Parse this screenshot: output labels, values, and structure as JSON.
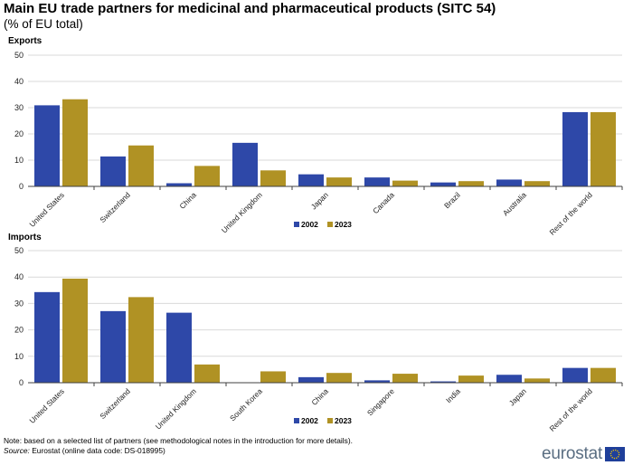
{
  "header": {
    "title": "Main EU trade partners for medicinal and pharmaceutical products (SITC 54)",
    "subtitle": "(% of EU total)"
  },
  "colors": {
    "series_2002": "#2e48a8",
    "series_2023": "#b09224",
    "grid": "#d9d9d9",
    "axis": "#404040"
  },
  "chart_data": [
    {
      "type": "bar",
      "title": "Exports",
      "categories": [
        "United States",
        "Switzerland",
        "China",
        "United Kingdom",
        "Japan",
        "Canada",
        "Brazil",
        "Australia",
        "Rest of the world"
      ],
      "series": [
        {
          "name": "2002",
          "values": [
            30.9,
            11.4,
            1.2,
            16.6,
            4.6,
            3.4,
            1.5,
            2.6,
            28.3
          ]
        },
        {
          "name": "2023",
          "values": [
            33.2,
            15.6,
            7.8,
            6.1,
            3.4,
            2.2,
            2.0,
            2.0,
            28.3
          ]
        }
      ],
      "ylim": [
        0,
        50
      ],
      "yticks": [
        "0",
        "10",
        "20",
        "30",
        "40",
        "50"
      ],
      "grid": true,
      "legend_position": "bottom-center"
    },
    {
      "type": "bar",
      "title": "Imports",
      "categories": [
        "United States",
        "Switzerland",
        "United Kingdom",
        "South Korea",
        "China",
        "Singapore",
        "India",
        "Japan",
        "Rest of the world"
      ],
      "series": [
        {
          "name": "2002",
          "values": [
            34.3,
            27.1,
            26.5,
            0.0,
            2.1,
            0.9,
            0.5,
            3.0,
            5.6
          ]
        },
        {
          "name": "2023",
          "values": [
            39.4,
            32.4,
            6.9,
            4.3,
            3.7,
            3.4,
            2.7,
            1.6,
            5.6
          ]
        }
      ],
      "ylim": [
        0,
        50
      ],
      "yticks": [
        "0",
        "10",
        "20",
        "30",
        "40",
        "50"
      ],
      "grid": true,
      "legend_position": "bottom-center"
    }
  ],
  "footer": {
    "note": "Note: based on a selected list of partners (see methodological notes in the introduction for more details).",
    "source_label": "Source:",
    "source_text": " Eurostat (online data code: DS-018995)",
    "logo_text": "eurostat"
  }
}
